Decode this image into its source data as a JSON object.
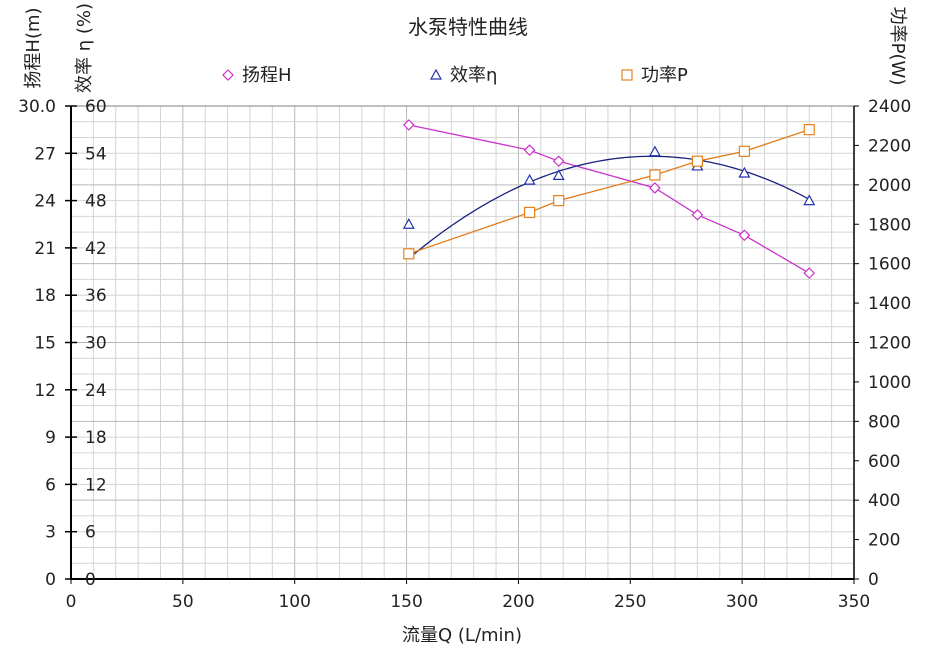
{
  "chart_data": {
    "type": "line",
    "title": "水泵特性曲线",
    "xlabel": "流量Q (L/min)",
    "ylabel_left": "扬程H(m)",
    "ylabel_eff": "效率 η (%)",
    "ylabel_right": "功率P(W)",
    "xlim": [
      0,
      350
    ],
    "ylim_head": [
      0,
      30
    ],
    "ylim_eff": [
      0,
      60
    ],
    "ylim_power": [
      0,
      2400
    ],
    "x_ticks": [
      "0",
      "50",
      "100",
      "150",
      "200",
      "250",
      "300",
      "350"
    ],
    "y_ticks_head": [
      "0",
      "3",
      "6",
      "9",
      "12",
      "15",
      "18",
      "21",
      "24",
      "27",
      "30.0"
    ],
    "y_ticks_eff": [
      "0",
      "6",
      "12",
      "18",
      "24",
      "30",
      "36",
      "42",
      "48",
      "54",
      "60"
    ],
    "y_ticks_power": [
      "0",
      "200",
      "400",
      "600",
      "800",
      "1000",
      "1200",
      "1400",
      "1600",
      "1800",
      "2000",
      "2200",
      "2400"
    ],
    "grid": true,
    "legend_position": "top",
    "series": [
      {
        "name": "扬程H",
        "axis": "head",
        "marker": "diamond",
        "color": "#cc33cc",
        "line_color": "#cc33cc",
        "x": [
          151,
          205,
          218,
          261,
          280,
          301,
          330
        ],
        "y": [
          28.8,
          27.2,
          26.5,
          24.8,
          23.1,
          21.8,
          19.4
        ]
      },
      {
        "name": "效率η",
        "axis": "eff",
        "marker": "triangle",
        "color": "#2233aa",
        "line_color": "#1a237e",
        "x": [
          151,
          205,
          218,
          261,
          280,
          301,
          330
        ],
        "y": [
          45.0,
          50.6,
          51.2,
          54.2,
          52.4,
          51.5,
          48.0
        ],
        "fit_coeffs": [
          -20.48,
          0.571,
          -0.0011
        ]
      },
      {
        "name": "功率P",
        "axis": "power",
        "marker": "square",
        "color": "#e6821e",
        "line_color": "#e07b1a",
        "x": [
          151,
          205,
          218,
          261,
          280,
          301,
          330
        ],
        "y": [
          1650,
          1860,
          1920,
          2050,
          2120,
          2170,
          2280
        ]
      }
    ]
  }
}
